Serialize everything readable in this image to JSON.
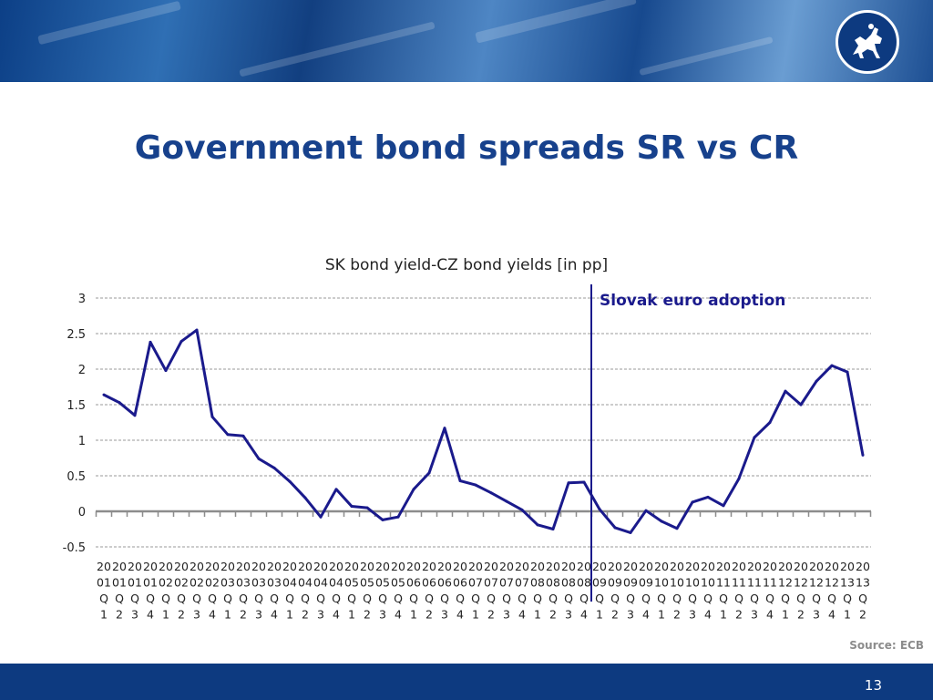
{
  "slide": {
    "title": "Government bond spreads SR vs CR",
    "source": "Source: ECB",
    "page_number": "13"
  },
  "colors": {
    "title": "#17418c",
    "line": "#1a1a8c",
    "annotation": "#1a1a8c",
    "banner": "#0d3a80",
    "footer": "#0d3a80"
  },
  "chart_data": {
    "type": "line",
    "title": "SK bond yield-CZ bond yields [in pp]",
    "xlabel": "",
    "ylabel": "",
    "ylim": [
      -0.5,
      3
    ],
    "yticks": [
      -0.5,
      0,
      0.5,
      1,
      1.5,
      2,
      2.5,
      3
    ],
    "ytick_labels": [
      "-0.5",
      "0",
      "0.5",
      "1",
      "1.5",
      "2",
      "2.5",
      "3"
    ],
    "grid": true,
    "legend": "none",
    "categories": [
      "2001Q1",
      "2001Q2",
      "2001Q3",
      "2001Q4",
      "2002Q1",
      "2002Q2",
      "2002Q3",
      "2002Q4",
      "2003Q1",
      "2003Q2",
      "2003Q3",
      "2003Q4",
      "2004Q1",
      "2004Q2",
      "2004Q3",
      "2004Q4",
      "2005Q1",
      "2005Q2",
      "2005Q3",
      "2005Q4",
      "2006Q1",
      "2006Q2",
      "2006Q3",
      "2006Q4",
      "2007Q1",
      "2007Q2",
      "2007Q3",
      "2007Q4",
      "2008Q1",
      "2008Q2",
      "2008Q3",
      "2008Q4",
      "2009Q1",
      "2009Q2",
      "2009Q3",
      "2009Q4",
      "2010Q1",
      "2010Q2",
      "2010Q3",
      "2010Q4",
      "2011Q1",
      "2011Q2",
      "2011Q3",
      "2011Q4",
      "2012Q1",
      "2012Q2",
      "2012Q3",
      "2012Q4",
      "2013Q1",
      "2013Q2"
    ],
    "series": [
      {
        "values": [
          1.64,
          1.53,
          1.35,
          2.38,
          1.98,
          2.39,
          2.55,
          1.33,
          1.08,
          1.06,
          0.74,
          0.61,
          0.42,
          0.19,
          -0.08,
          0.31,
          0.07,
          0.05,
          -0.12,
          -0.08,
          0.31,
          0.54,
          1.17,
          0.43,
          0.37,
          0.26,
          0.14,
          0.02,
          -0.19,
          -0.25,
          0.4,
          0.41,
          0.03,
          -0.23,
          -0.3,
          0.01,
          -0.14,
          -0.24,
          0.13,
          0.2,
          0.08,
          0.46,
          1.04,
          1.25,
          1.69,
          1.5,
          1.83,
          2.05,
          1.96,
          0.79
        ]
      }
    ],
    "annotations": [
      {
        "text": "Slovak euro adoption",
        "at_category": "2009Q1"
      }
    ]
  }
}
